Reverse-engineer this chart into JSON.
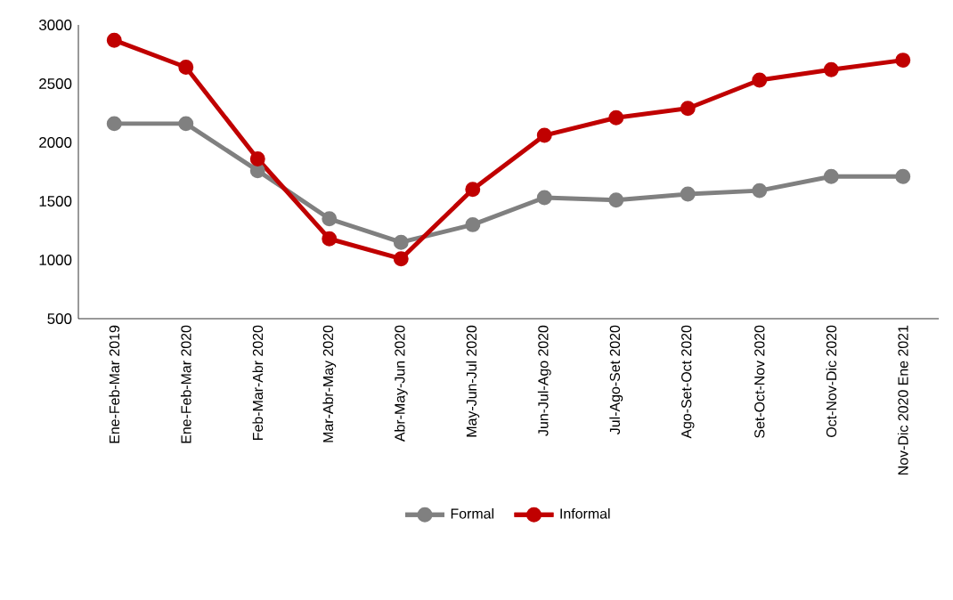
{
  "chart_data": {
    "type": "line",
    "categories": [
      "Ene-Feb-Mar 2019",
      "Ene-Feb-Mar 2020",
      "Feb-Mar-Abr 2020",
      "Mar-Abr-May 2020",
      "Abr-May-Jun 2020",
      "May-Jun-Jul 2020",
      "Jun-Jul-Ago 2020",
      "Jul-Ago-Set 2020",
      "Ago-Set-Oct 2020",
      "Set-Oct-Nov 2020",
      "Oct-Nov-Dic 2020",
      "Nov-Dic 2020 Ene 2021"
    ],
    "series": [
      {
        "name": "Formal",
        "color": "#808080",
        "values": [
          2160,
          2160,
          1760,
          1350,
          1150,
          1300,
          1530,
          1510,
          1560,
          1590,
          1710,
          1710
        ]
      },
      {
        "name": "Informal",
        "color": "#c00000",
        "values": [
          2870,
          2640,
          1860,
          1180,
          1010,
          1600,
          2060,
          2210,
          2290,
          2530,
          2620,
          2700
        ]
      }
    ],
    "ylim": [
      500,
      3000
    ],
    "yticks": [
      500,
      1000,
      1500,
      2000,
      2500,
      3000
    ],
    "legend": "bottom",
    "marker": "circle",
    "line_style": "solid"
  }
}
